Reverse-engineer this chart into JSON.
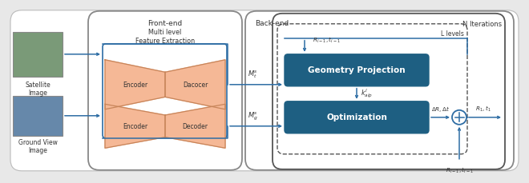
{
  "bg_color": "#e8e8e8",
  "arrow_color": "#2e6da4",
  "enc_color": "#f5b896",
  "enc_edge_color": "#c8855a",
  "teal_color": "#1e5f82",
  "frontend_label": "Front-end",
  "frontend_sublabel": "Multi level\nFeature Extraction",
  "backend_label": "Back-end",
  "iterations_label": "N Iterations",
  "levels_label": "L levels",
  "geom_label": "Geometry Projection",
  "optim_label": "Optimization",
  "encoder_label": "Encoder",
  "decoder_label": "Dacocer",
  "encoder2_label": "Encoder",
  "decoder2_label": "Decoder",
  "sat_label": "Satellite\nImage",
  "gv_label": "Ground View\nImage",
  "Mt_label": "$M_t^s$",
  "Mg_label": "$M_g^s$",
  "kalp_label": "$k_{alp}^l$",
  "Ri1_top_label": "$R_{i-1}, t_{i-1}$",
  "deltaRt_label": "$\\Delta R, \\Delta t$",
  "R1t1_label": "$R_1, t_1$",
  "Ri1_bot_label": "$R_{i-1}, t_{i-1}$"
}
